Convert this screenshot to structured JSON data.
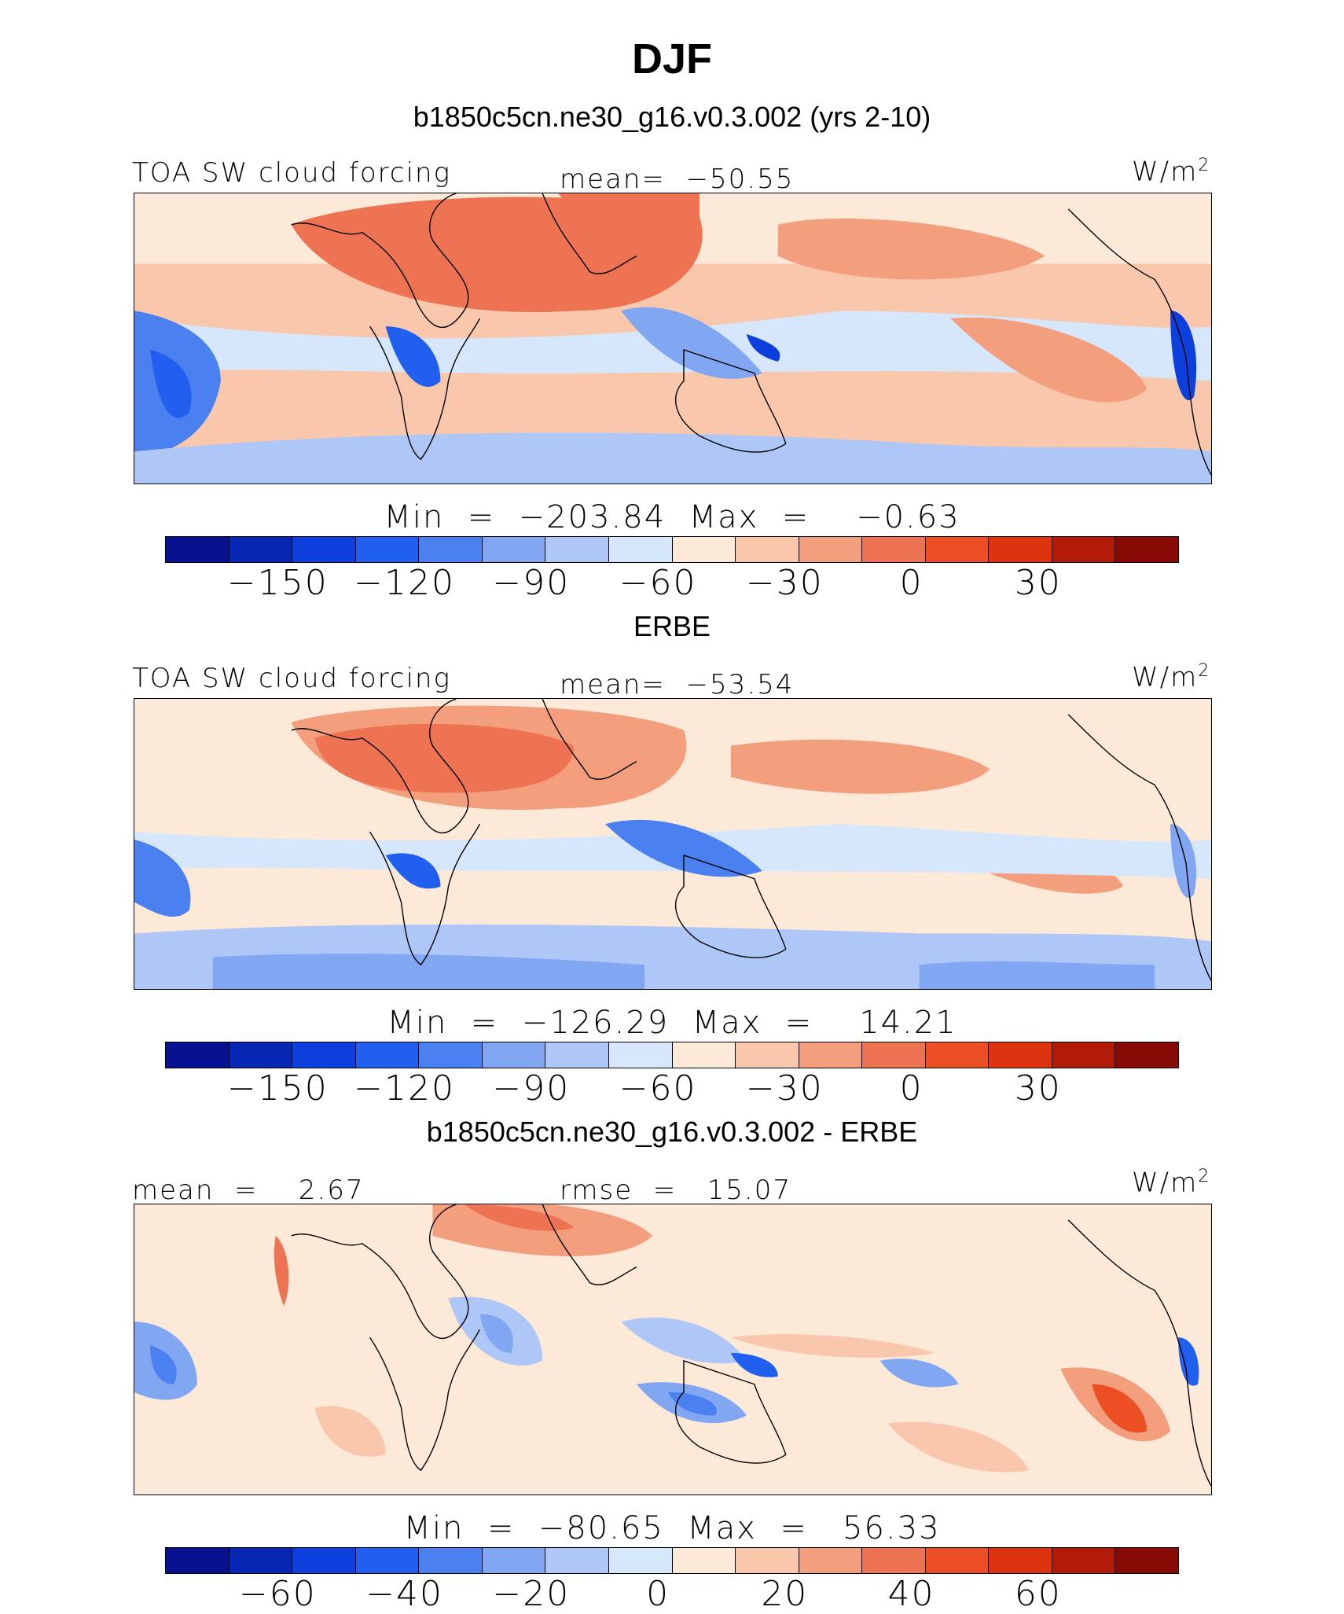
{
  "figure": {
    "title": "DJF",
    "colors": [
      "#08118f",
      "#0626b4",
      "#0c3fdc",
      "#2160ef",
      "#4a80f0",
      "#82a7f2",
      "#aec7f6",
      "#d6e6fb",
      "#fde9d8",
      "#f9c7ab",
      "#f39e7d",
      "#ee7352",
      "#ed4f25",
      "#de3310",
      "#b21b07",
      "#870a04"
    ]
  },
  "panels": [
    {
      "title": "b1850c5cn.ne30_g16.v0.3.002 (yrs 2-10)",
      "left_label": "TOA SW cloud forcing",
      "center_label": "mean=  −50.55",
      "units": "W/m",
      "units_sup": "2",
      "minmax": "Min  =  −203.84  Max  =    −0.63",
      "ticks": [
        "−150",
        "−120",
        "−90",
        "−60",
        "−30",
        "0",
        "30"
      ]
    },
    {
      "title": "ERBE",
      "left_label": "TOA SW cloud forcing",
      "center_label": "mean=  −53.54",
      "units": "W/m",
      "units_sup": "2",
      "minmax": "Min  =  −126.29  Max  =    14.21",
      "ticks": [
        "−150",
        "−120",
        "−90",
        "−60",
        "−30",
        "0",
        "30"
      ]
    },
    {
      "title": "b1850c5cn.ne30_g16.v0.3.002 - ERBE",
      "left_label": "mean  =    2.67",
      "center_label": "rmse  =   15.07",
      "units": "W/m",
      "units_sup": "2",
      "minmax": "Min  =  −80.65  Max  =   56.33",
      "ticks": [
        "−60",
        "−40",
        "−20",
        "0",
        "20",
        "40",
        "60"
      ]
    }
  ]
}
